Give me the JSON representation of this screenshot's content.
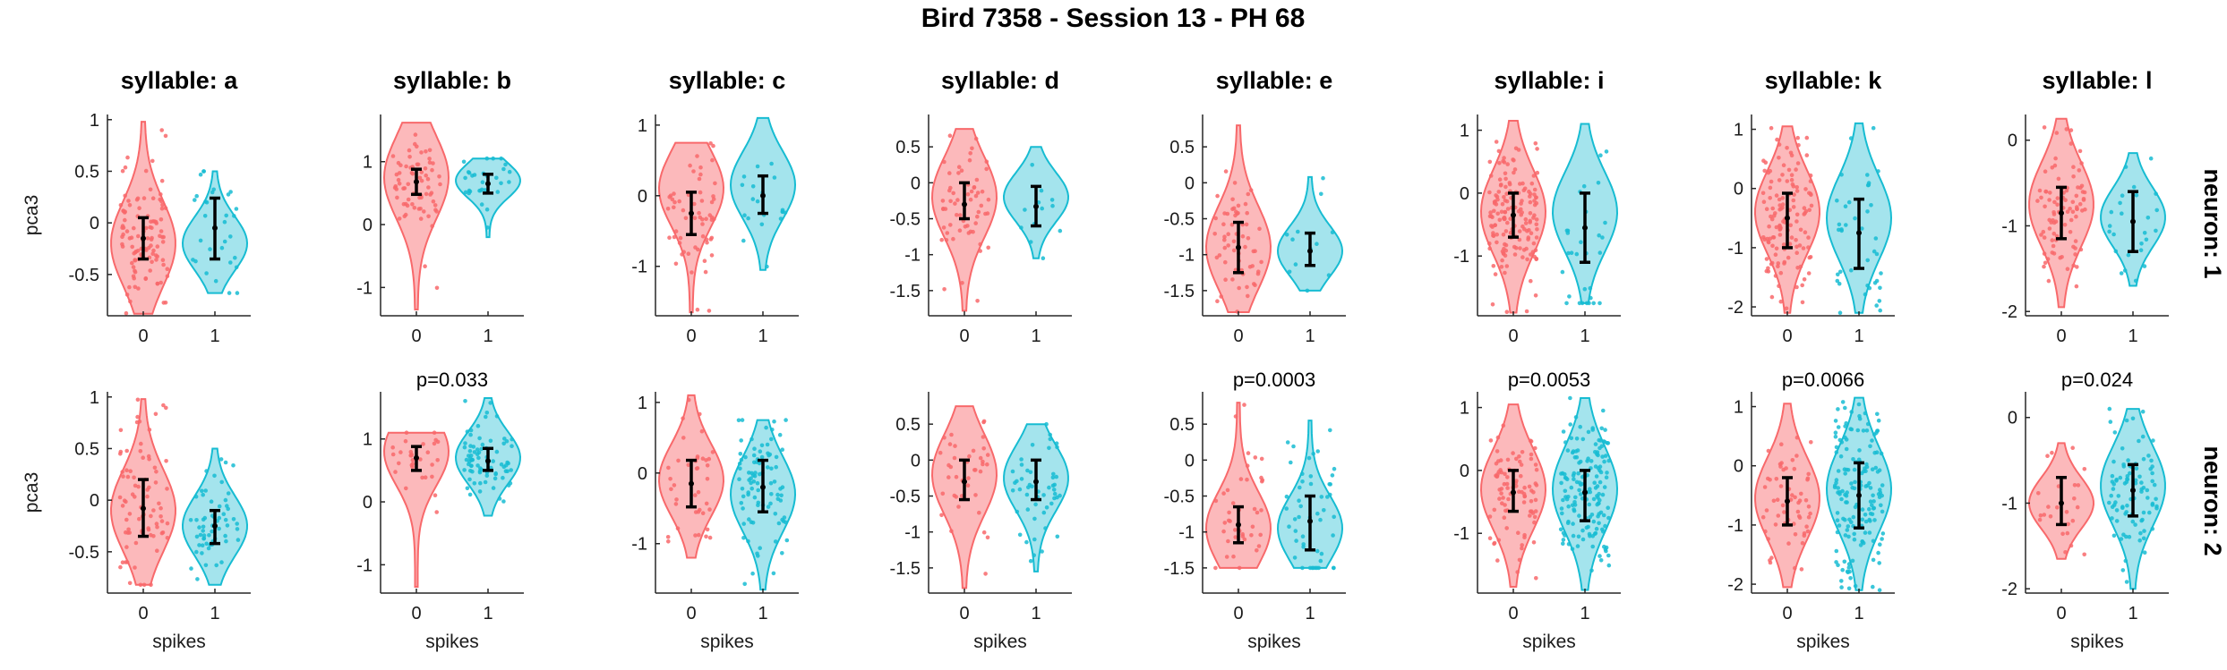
{
  "figure_title": "Bird 7358 - Session 13 - PH 68",
  "colors": {
    "group0": "#F8696B",
    "group0_fill": "#FCB5B7",
    "group1": "#17BCD2",
    "group1_fill": "#9FE3EC",
    "error_bar": "#000000",
    "axis": "#262626"
  },
  "row_labels": [
    "neuron: 1",
    "neuron: 2"
  ],
  "x_label": "spikes",
  "y_label": "pca3",
  "x_ticks": [
    "0",
    "1"
  ],
  "chart_data": [
    {
      "type": "violin",
      "row": 0,
      "col": 0,
      "title": "syllable: a",
      "xlabel": "",
      "ylabel": "pca3",
      "categories": [
        "0",
        "1"
      ],
      "ylim": [
        -0.9,
        1.05
      ],
      "yticks": [
        -0.5,
        0,
        0.5,
        1
      ],
      "p_value": "",
      "series": [
        {
          "name": "0",
          "min": -0.88,
          "max": 0.98,
          "lo": -0.35,
          "mid": -0.15,
          "hi": 0.05,
          "peak": -0.2,
          "n": 110
        },
        {
          "name": "1",
          "min": -0.68,
          "max": 0.5,
          "lo": -0.35,
          "mid": -0.05,
          "hi": 0.24,
          "peak": -0.2,
          "n": 30
        }
      ]
    },
    {
      "type": "violin",
      "row": 0,
      "col": 1,
      "title": "syllable: b",
      "xlabel": "",
      "ylabel": "",
      "categories": [
        "0",
        "1"
      ],
      "ylim": [
        -1.45,
        1.75
      ],
      "yticks": [
        -1,
        0,
        1
      ],
      "p_value": "",
      "series": [
        {
          "name": "0",
          "min": -1.35,
          "max": 1.62,
          "lo": 0.48,
          "mid": 0.68,
          "hi": 0.88,
          "peak": 0.75,
          "n": 70
        },
        {
          "name": "1",
          "min": -0.2,
          "max": 1.05,
          "lo": 0.5,
          "mid": 0.65,
          "hi": 0.8,
          "peak": 0.7,
          "n": 30
        }
      ]
    },
    {
      "type": "violin",
      "row": 0,
      "col": 2,
      "title": "syllable: c",
      "xlabel": "",
      "ylabel": "",
      "categories": [
        "0",
        "1"
      ],
      "ylim": [
        -1.7,
        1.15
      ],
      "yticks": [
        -1,
        0,
        1
      ],
      "p_value": "",
      "series": [
        {
          "name": "0",
          "min": -1.65,
          "max": 0.75,
          "lo": -0.55,
          "mid": -0.25,
          "hi": 0.05,
          "peak": 0.1,
          "n": 60
        },
        {
          "name": "1",
          "min": -1.05,
          "max": 1.1,
          "lo": -0.25,
          "mid": 0,
          "hi": 0.28,
          "peak": 0.15,
          "n": 20
        }
      ]
    },
    {
      "type": "violin",
      "row": 0,
      "col": 3,
      "title": "syllable: d",
      "xlabel": "",
      "ylabel": "",
      "categories": [
        "0",
        "1"
      ],
      "ylim": [
        -1.85,
        0.95
      ],
      "yticks": [
        -1.5,
        -1,
        -0.5,
        0,
        0.5
      ],
      "p_value": "",
      "series": [
        {
          "name": "0",
          "min": -1.78,
          "max": 0.75,
          "lo": -0.5,
          "mid": -0.3,
          "hi": 0,
          "peak": -0.2,
          "n": 60
        },
        {
          "name": "1",
          "min": -1.05,
          "max": 0.5,
          "lo": -0.6,
          "mid": -0.33,
          "hi": -0.05,
          "peak": -0.2,
          "n": 12
        }
      ]
    },
    {
      "type": "violin",
      "row": 0,
      "col": 4,
      "title": "syllable: e",
      "xlabel": "",
      "ylabel": "",
      "categories": [
        "0",
        "1"
      ],
      "ylim": [
        -1.85,
        0.95
      ],
      "yticks": [
        -1.5,
        -1,
        -0.5,
        0,
        0.5
      ],
      "p_value": "",
      "series": [
        {
          "name": "0",
          "min": -1.8,
          "max": 0.8,
          "lo": -1.25,
          "mid": -0.9,
          "hi": -0.55,
          "peak": -0.9,
          "n": 60
        },
        {
          "name": "1",
          "min": -1.5,
          "max": 0.08,
          "lo": -1.15,
          "mid": -0.95,
          "hi": -0.7,
          "peak": -0.95,
          "n": 12
        }
      ]
    },
    {
      "type": "violin",
      "row": 0,
      "col": 5,
      "title": "syllable: i",
      "xlabel": "",
      "ylabel": "",
      "categories": [
        "0",
        "1"
      ],
      "ylim": [
        -1.95,
        1.25
      ],
      "yticks": [
        -1,
        0,
        1
      ],
      "p_value": "",
      "series": [
        {
          "name": "0",
          "min": -1.9,
          "max": 1.15,
          "lo": -0.7,
          "mid": -0.35,
          "hi": 0,
          "peak": -0.3,
          "n": 160
        },
        {
          "name": "1",
          "min": -1.75,
          "max": 1.1,
          "lo": -1.1,
          "mid": -0.55,
          "hi": 0,
          "peak": -0.3,
          "n": 30
        }
      ]
    },
    {
      "type": "violin",
      "row": 0,
      "col": 6,
      "title": "syllable: k",
      "xlabel": "",
      "ylabel": "",
      "categories": [
        "0",
        "1"
      ],
      "ylim": [
        -2.15,
        1.25
      ],
      "yticks": [
        -2,
        -1,
        0,
        1
      ],
      "p_value": "",
      "series": [
        {
          "name": "0",
          "min": -2.1,
          "max": 1.05,
          "lo": -1,
          "mid": -0.5,
          "hi": -0.08,
          "peak": -0.4,
          "n": 130
        },
        {
          "name": "1",
          "min": -2.1,
          "max": 1.1,
          "lo": -1.35,
          "mid": -0.75,
          "hi": -0.18,
          "peak": -0.5,
          "n": 40
        }
      ]
    },
    {
      "type": "violin",
      "row": 0,
      "col": 7,
      "title": "syllable: l",
      "xlabel": "",
      "ylabel": "",
      "categories": [
        "0",
        "1"
      ],
      "ylim": [
        -2.05,
        0.3
      ],
      "yticks": [
        -2,
        -1,
        0
      ],
      "p_value": "",
      "series": [
        {
          "name": "0",
          "min": -1.95,
          "max": 0.25,
          "lo": -1.15,
          "mid": -0.85,
          "hi": -0.55,
          "peak": -0.75,
          "n": 90
        },
        {
          "name": "1",
          "min": -1.7,
          "max": -0.15,
          "lo": -1.3,
          "mid": -0.95,
          "hi": -0.6,
          "peak": -0.9,
          "n": 25
        }
      ]
    },
    {
      "type": "violin",
      "row": 1,
      "col": 0,
      "title": "",
      "xlabel": "spikes",
      "ylabel": "pca3",
      "categories": [
        "0",
        "1"
      ],
      "ylim": [
        -0.9,
        1.05
      ],
      "yticks": [
        -0.5,
        0,
        0.5,
        1
      ],
      "p_value": "",
      "series": [
        {
          "name": "0",
          "min": -0.82,
          "max": 0.98,
          "lo": -0.35,
          "mid": -0.08,
          "hi": 0.2,
          "peak": -0.1,
          "n": 80
        },
        {
          "name": "1",
          "min": -0.82,
          "max": 0.5,
          "lo": -0.42,
          "mid": -0.25,
          "hi": -0.1,
          "peak": -0.25,
          "n": 60
        }
      ]
    },
    {
      "type": "violin",
      "row": 1,
      "col": 1,
      "title": "",
      "xlabel": "spikes",
      "ylabel": "",
      "categories": [
        "0",
        "1"
      ],
      "ylim": [
        -1.45,
        1.75
      ],
      "yticks": [
        -1,
        0,
        1
      ],
      "p_value": "p=0.033",
      "series": [
        {
          "name": "0",
          "min": -1.35,
          "max": 1.1,
          "lo": 0.5,
          "mid": 0.7,
          "hi": 0.88,
          "peak": 0.8,
          "n": 30
        },
        {
          "name": "1",
          "min": -0.22,
          "max": 1.65,
          "lo": 0.5,
          "mid": 0.65,
          "hi": 0.85,
          "peak": 0.7,
          "n": 80
        }
      ]
    },
    {
      "type": "violin",
      "row": 1,
      "col": 2,
      "title": "",
      "xlabel": "spikes",
      "ylabel": "",
      "categories": [
        "0",
        "1"
      ],
      "ylim": [
        -1.7,
        1.15
      ],
      "yticks": [
        -1,
        0,
        1
      ],
      "p_value": "",
      "series": [
        {
          "name": "0",
          "min": -1.2,
          "max": 1.1,
          "lo": -0.48,
          "mid": -0.15,
          "hi": 0.18,
          "peak": -0.1,
          "n": 40
        },
        {
          "name": "1",
          "min": -1.65,
          "max": 0.75,
          "lo": -0.55,
          "mid": -0.2,
          "hi": 0.18,
          "peak": -0.3,
          "n": 90
        }
      ]
    },
    {
      "type": "violin",
      "row": 1,
      "col": 3,
      "title": "",
      "xlabel": "spikes",
      "ylabel": "",
      "categories": [
        "0",
        "1"
      ],
      "ylim": [
        -1.85,
        0.95
      ],
      "yticks": [
        -1.5,
        -1,
        -0.5,
        0,
        0.5
      ],
      "p_value": "",
      "series": [
        {
          "name": "0",
          "min": -1.78,
          "max": 0.75,
          "lo": -0.55,
          "mid": -0.3,
          "hi": 0,
          "peak": -0.2,
          "n": 40
        },
        {
          "name": "1",
          "min": -1.55,
          "max": 0.5,
          "lo": -0.55,
          "mid": -0.3,
          "hi": 0,
          "peak": -0.25,
          "n": 50
        }
      ]
    },
    {
      "type": "violin",
      "row": 1,
      "col": 4,
      "title": "",
      "xlabel": "spikes",
      "ylabel": "",
      "categories": [
        "0",
        "1"
      ],
      "ylim": [
        -1.85,
        0.95
      ],
      "yticks": [
        -1.5,
        -1,
        -0.5,
        0,
        0.5
      ],
      "p_value": "p=0.0003",
      "series": [
        {
          "name": "0",
          "min": -1.5,
          "max": 0.8,
          "lo": -1.15,
          "mid": -0.9,
          "hi": -0.65,
          "peak": -0.95,
          "n": 40
        },
        {
          "name": "1",
          "min": -1.5,
          "max": 0.55,
          "lo": -1.25,
          "mid": -0.85,
          "hi": -0.5,
          "peak": -0.95,
          "n": 50
        }
      ]
    },
    {
      "type": "violin",
      "row": 1,
      "col": 5,
      "title": "",
      "xlabel": "spikes",
      "ylabel": "",
      "categories": [
        "0",
        "1"
      ],
      "ylim": [
        -1.95,
        1.25
      ],
      "yticks": [
        -1,
        0,
        1
      ],
      "p_value": "p=0.0053",
      "series": [
        {
          "name": "0",
          "min": -1.85,
          "max": 1.05,
          "lo": -0.65,
          "mid": -0.35,
          "hi": 0,
          "peak": -0.3,
          "n": 90
        },
        {
          "name": "1",
          "min": -1.9,
          "max": 1.15,
          "lo": -0.8,
          "mid": -0.35,
          "hi": 0,
          "peak": -0.3,
          "n": 160
        }
      ]
    },
    {
      "type": "violin",
      "row": 1,
      "col": 6,
      "title": "",
      "xlabel": "spikes",
      "ylabel": "",
      "categories": [
        "0",
        "1"
      ],
      "ylim": [
        -2.15,
        1.25
      ],
      "yticks": [
        -2,
        -1,
        0,
        1
      ],
      "p_value": "p=0.0066",
      "series": [
        {
          "name": "0",
          "min": -2.05,
          "max": 1.05,
          "lo": -1,
          "mid": -0.6,
          "hi": -0.2,
          "peak": -0.55,
          "n": 60
        },
        {
          "name": "1",
          "min": -2.1,
          "max": 1.15,
          "lo": -1.05,
          "mid": -0.5,
          "hi": 0.05,
          "peak": -0.4,
          "n": 160
        }
      ]
    },
    {
      "type": "violin",
      "row": 1,
      "col": 7,
      "title": "",
      "xlabel": "spikes",
      "ylabel": "",
      "categories": [
        "0",
        "1"
      ],
      "ylim": [
        -2.05,
        0.3
      ],
      "yticks": [
        -2,
        -1,
        0
      ],
      "p_value": "p=0.024",
      "series": [
        {
          "name": "0",
          "min": -1.65,
          "max": -0.3,
          "lo": -1.25,
          "mid": -1,
          "hi": -0.7,
          "peak": -1,
          "n": 25
        },
        {
          "name": "1",
          "min": -2,
          "max": 0.1,
          "lo": -1.15,
          "mid": -0.85,
          "hi": -0.55,
          "peak": -0.8,
          "n": 90
        }
      ]
    }
  ]
}
